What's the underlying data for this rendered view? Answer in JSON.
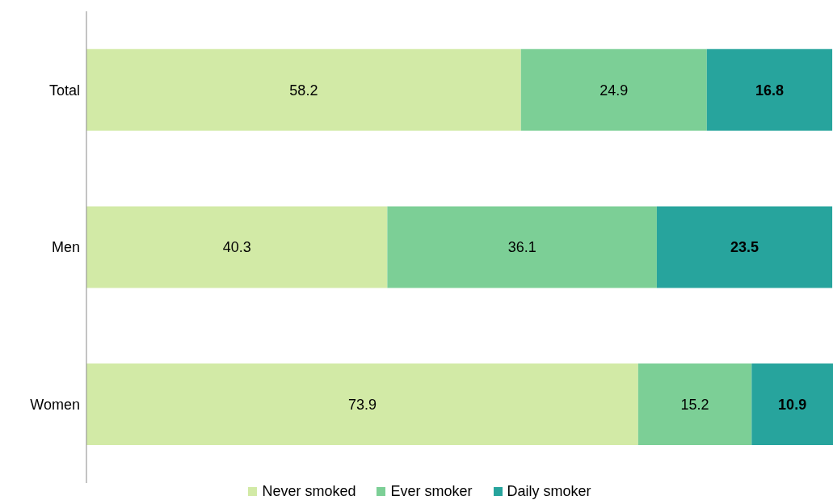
{
  "chart_data": {
    "type": "bar",
    "orientation": "horizontal",
    "stacked": true,
    "categories": [
      "Total",
      "Men",
      "Women"
    ],
    "series": [
      {
        "name": "Never smoked",
        "color": "#d2eaa6",
        "values": [
          58.2,
          40.3,
          73.9
        ]
      },
      {
        "name": "Ever smoker",
        "color": "#7ccf96",
        "values": [
          24.9,
          36.1,
          15.2
        ]
      },
      {
        "name": "Daily smoker",
        "color": "#27a49d",
        "values": [
          16.8,
          23.5,
          10.9
        ]
      }
    ],
    "xlim": [
      0,
      100
    ],
    "data_labels": true,
    "legend": "bottom",
    "tick_labels": "y"
  }
}
